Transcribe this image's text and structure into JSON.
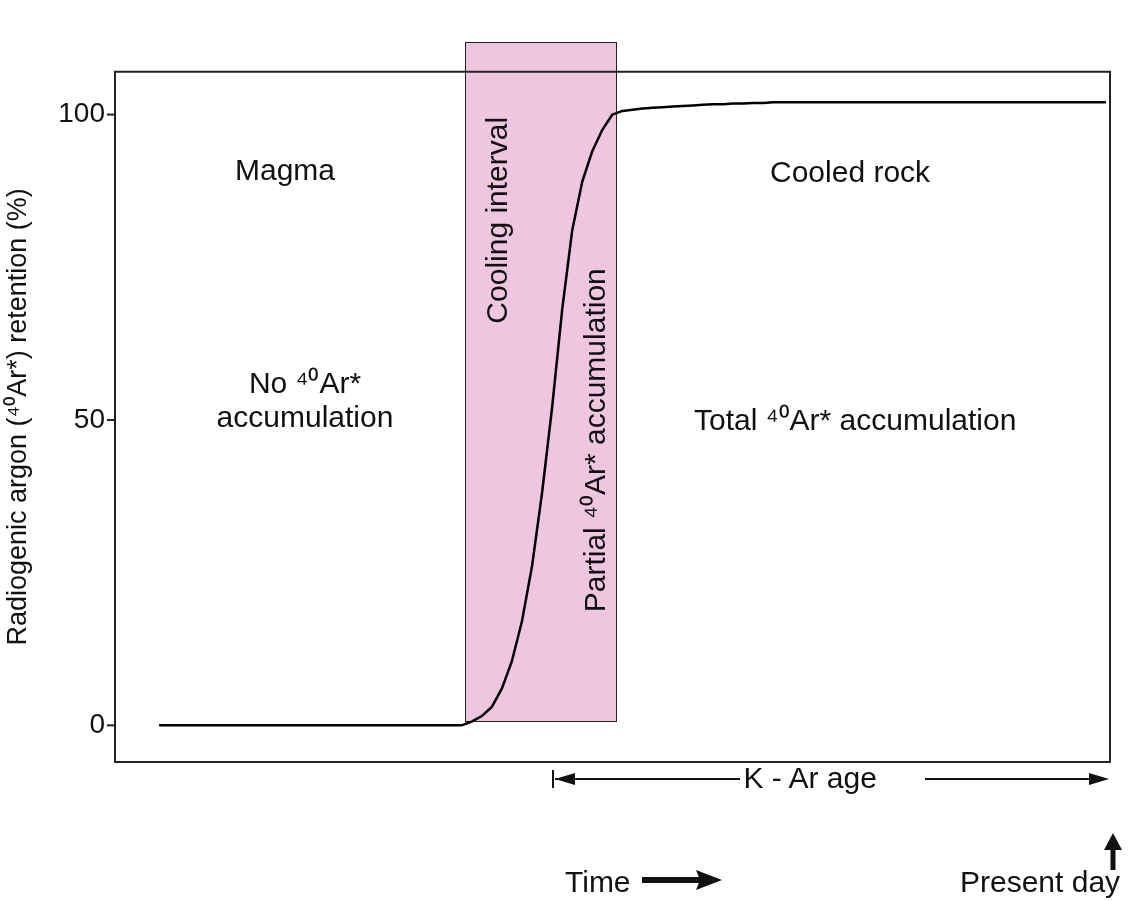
{
  "chart_data": {
    "type": "line",
    "ylabel": "Radiogenic argon (⁴⁰Ar*) retention (%)",
    "categories": [
      null,
      null,
      null,
      null,
      null,
      null,
      null,
      null,
      null,
      null,
      null,
      null,
      null,
      null,
      null,
      null,
      null,
      null,
      null,
      null,
      null,
      null,
      null,
      null,
      null,
      null,
      null,
      null,
      null,
      null,
      null,
      null,
      null,
      null,
      null,
      null,
      null,
      null,
      null,
      null,
      null,
      null,
      null,
      null,
      null,
      null,
      null,
      null,
      null,
      null,
      null,
      null,
      null,
      null,
      null,
      null,
      null,
      null,
      null,
      null,
      null,
      null,
      null,
      null,
      null,
      null,
      null,
      null,
      null,
      null,
      null,
      null,
      null,
      null,
      null,
      null,
      null,
      null,
      null,
      null,
      null,
      null,
      null,
      null,
      null,
      null,
      null,
      null,
      null,
      null,
      null,
      null,
      null,
      null,
      null
    ],
    "ylim": [
      -6,
      107
    ],
    "yticks": [
      0,
      50,
      100
    ],
    "tick_labels": "y",
    "grid": false,
    "legend": false,
    "marker": "none",
    "line_style": "solid",
    "series": [
      {
        "color": "#000000",
        "values": [
          0,
          0,
          0,
          0,
          0,
          0,
          0,
          0,
          0,
          0,
          0,
          0,
          0,
          0,
          0,
          0,
          0,
          0,
          0,
          0,
          0,
          0,
          0,
          0,
          0,
          0,
          0,
          0,
          0,
          0,
          0,
          0.6,
          1.5,
          3,
          6,
          10.5,
          17,
          26,
          38,
          52,
          68,
          81,
          89,
          94,
          97.5,
          100,
          100.6,
          100.8,
          101,
          101.1,
          101.2,
          101.3,
          101.4,
          101.5,
          101.6,
          101.7,
          101.7,
          101.8,
          101.8,
          101.9,
          101.9,
          102,
          102,
          102,
          102,
          102,
          102,
          102,
          102,
          102,
          102,
          102,
          102,
          102,
          102,
          102,
          102,
          102,
          102,
          102,
          102,
          102,
          102,
          102,
          102,
          102,
          102,
          102,
          102,
          102,
          102,
          102,
          102,
          102,
          102
        ]
      }
    ],
    "annotations": [
      "Magma",
      "No ⁴⁰Ar* accumulation",
      "Cooling interval",
      "Partial ⁴⁰Ar* accumulation",
      "Cooled rock",
      "Total ⁴⁰Ar* accumulation",
      "K - Ar age",
      "Time",
      "Present day"
    ]
  }
}
